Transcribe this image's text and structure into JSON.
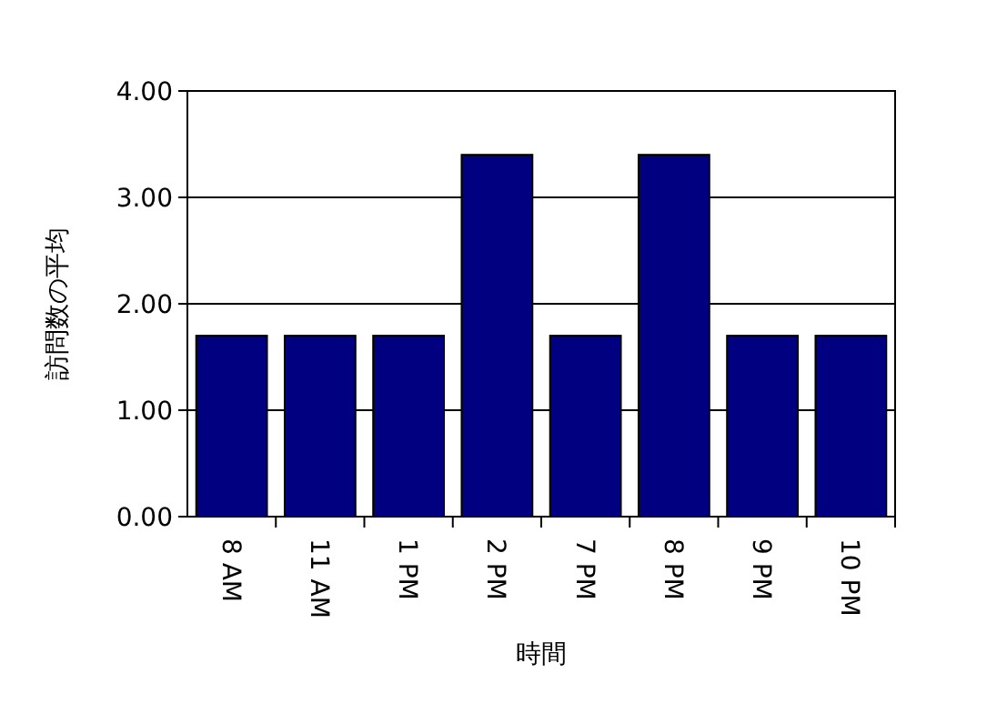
{
  "chart_data": {
    "type": "bar",
    "xlabel": "時間",
    "ylabel": "訪問数の平均",
    "categories": [
      "8 AM",
      "11 AM",
      "1 PM",
      "2 PM",
      "7 PM",
      "8 PM",
      "9 PM",
      "10 PM"
    ],
    "values": [
      1.7,
      1.7,
      1.7,
      3.4,
      1.7,
      3.4,
      1.7,
      1.7
    ],
    "color": "#000080",
    "ylim": [
      0,
      4
    ],
    "yticks": [
      {
        "value": 0,
        "label": "0.00"
      },
      {
        "value": 1,
        "label": "1.00"
      },
      {
        "value": 2,
        "label": "2.00"
      },
      {
        "value": 3,
        "label": "3.00"
      },
      {
        "value": 4,
        "label": "4.00"
      }
    ],
    "grid": "y"
  }
}
